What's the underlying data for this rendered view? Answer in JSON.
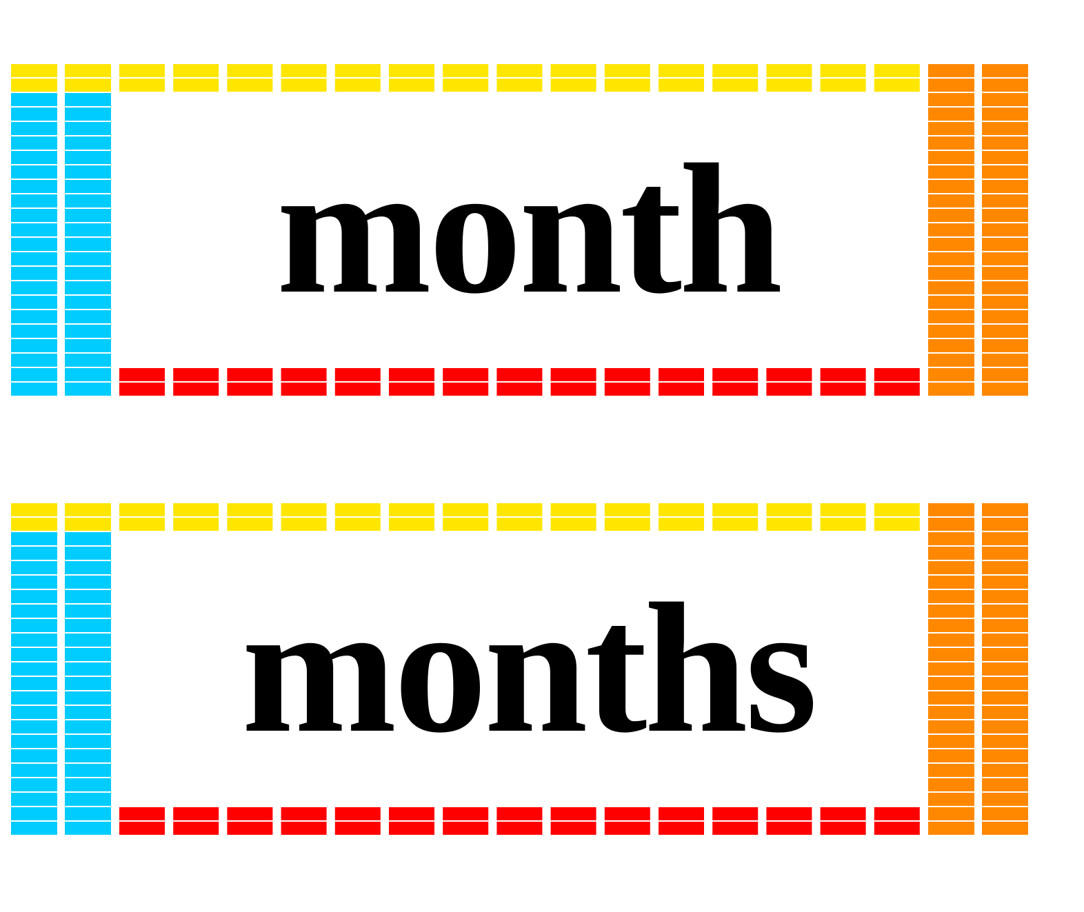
{
  "colors": {
    "left_column": "#00CCFF",
    "top_row": "#FFE600",
    "right_column": "#FF8800",
    "bottom_row": "#FF0000",
    "text": "#000000"
  },
  "cards": [
    {
      "word": "month"
    },
    {
      "word": "months"
    }
  ]
}
